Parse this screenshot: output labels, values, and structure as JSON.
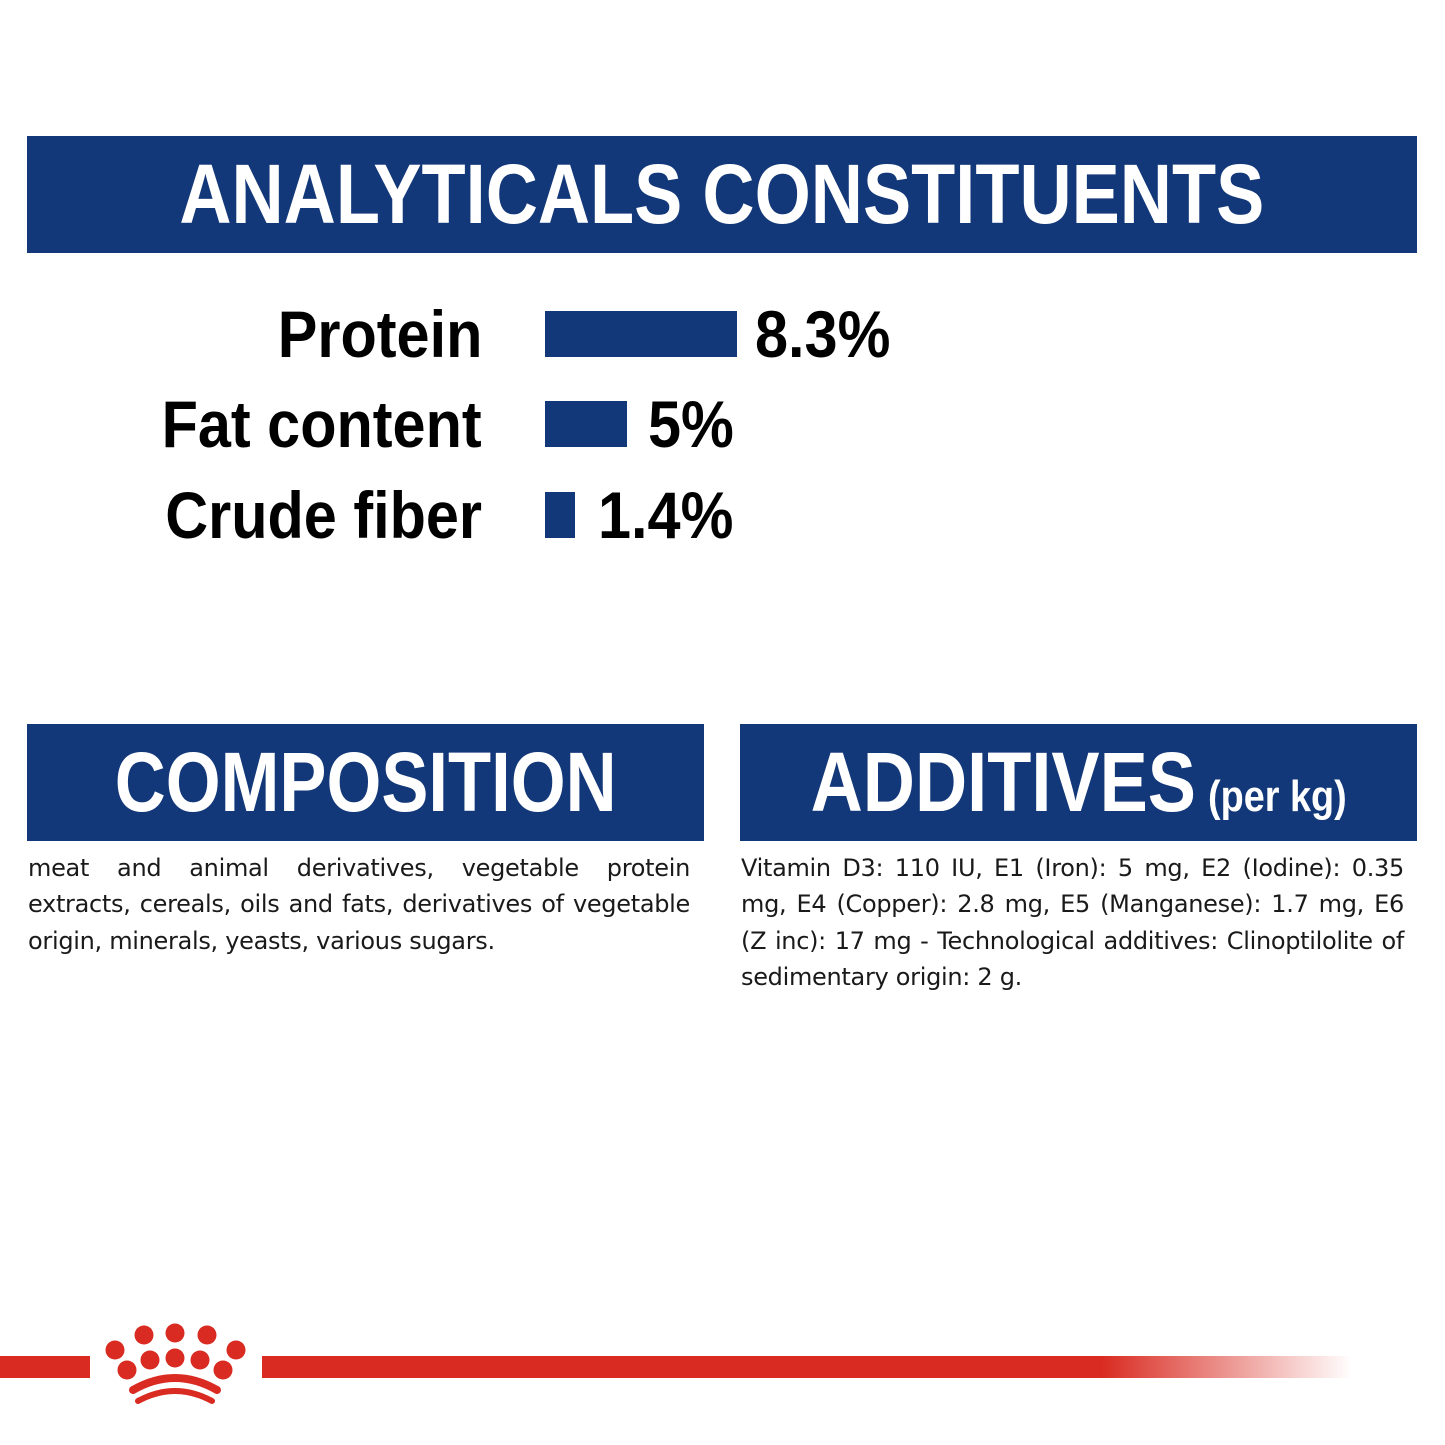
{
  "analytical": {
    "title": "ANALYTICALS CONSTITUENTS",
    "items": [
      {
        "label": "Protein",
        "value": "8.3%",
        "percent": 8.3
      },
      {
        "label": "Fat content",
        "value": "5%",
        "percent": 5
      },
      {
        "label": "Crude fiber",
        "value": "1.4%",
        "percent": 1.4
      }
    ]
  },
  "composition": {
    "title": "COMPOSITION",
    "text": "meat and animal derivatives, vegetable protein extracts, cereals, oils and fats, derivatives of vegetable origin, minerals, yeasts, various sugars."
  },
  "additives": {
    "title": "ADDITIVES",
    "subtitle": "(per kg)",
    "text": "Vitamin D3: 110 IU, E1 (Iron): 5 mg, E2 (Iodine): 0.35 mg, E4 (Copper): 2.8 mg, E5 (Manganese): 1.7 mg, E6 (Z inc): 17 mg - Technological additives: Clinoptilolite of sedimentary origin: 2 g."
  },
  "colors": {
    "brand_blue": "#133879",
    "brand_red": "#d92b21"
  },
  "logo": {
    "icon": "crown-icon"
  }
}
